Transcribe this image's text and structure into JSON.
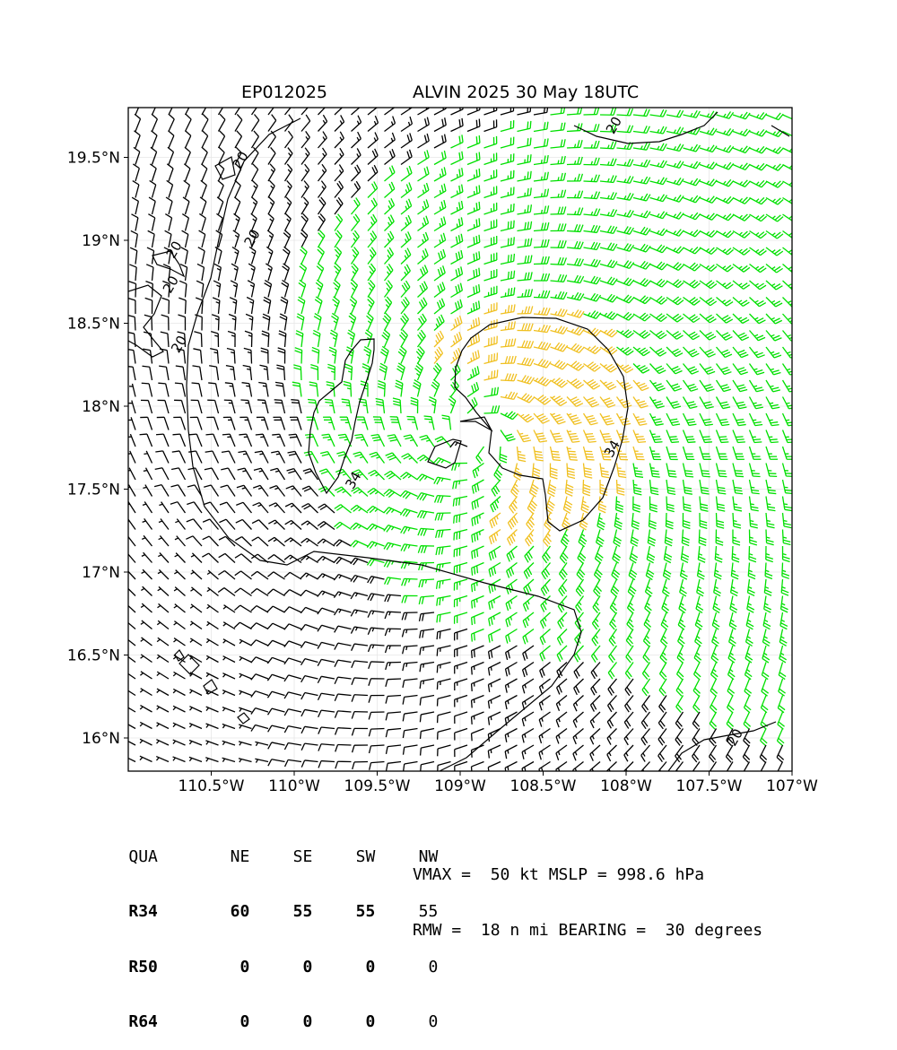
{
  "header": {
    "storm_id": "EP012025",
    "storm_title": "ALVIN 2025 30 May 18UTC"
  },
  "map": {
    "lat_range": [
      15.8,
      19.8
    ],
    "lon_range": [
      -111.0,
      -107.0
    ],
    "lat_ticks": [
      {
        "value": 16.0,
        "label": "16°N"
      },
      {
        "value": 16.5,
        "label": "16.5°N"
      },
      {
        "value": 17.0,
        "label": "17°N"
      },
      {
        "value": 17.5,
        "label": "17.5°N"
      },
      {
        "value": 18.0,
        "label": "18°N"
      },
      {
        "value": 18.5,
        "label": "18.5°N"
      },
      {
        "value": 19.0,
        "label": "19°N"
      },
      {
        "value": 19.5,
        "label": "19.5°N"
      }
    ],
    "lon_ticks": [
      {
        "value": -110.5,
        "label": "110.5°W"
      },
      {
        "value": -110.0,
        "label": "110°W"
      },
      {
        "value": -109.5,
        "label": "109.5°W"
      },
      {
        "value": -109.0,
        "label": "109°W"
      },
      {
        "value": -108.5,
        "label": "108.5°W"
      },
      {
        "value": -108.0,
        "label": "108°W"
      },
      {
        "value": -107.5,
        "label": "107.5°W"
      },
      {
        "value": -107.0,
        "label": "107°W"
      }
    ],
    "grid": true,
    "center": {
      "lat": 17.82,
      "lon": -108.9
    },
    "barb_colors": {
      "below_20": "#000000",
      "gale": "#00e000",
      "storm": "#f0c020"
    },
    "contour_labels": [
      {
        "text": "20",
        "lat": 19.68,
        "lon": -108.05
      },
      {
        "text": "20",
        "lat": 19.47,
        "lon": -110.3
      },
      {
        "text": "20",
        "lat": 19.0,
        "lon": -110.23
      },
      {
        "text": "20",
        "lat": 18.93,
        "lon": -110.7
      },
      {
        "text": "20",
        "lat": 18.72,
        "lon": -110.72
      },
      {
        "text": "20",
        "lat": 18.36,
        "lon": -110.67
      },
      {
        "text": "20",
        "lat": 15.99,
        "lon": -107.32
      },
      {
        "text": "34",
        "lat": 17.54,
        "lon": -109.62
      },
      {
        "text": "34",
        "lat": 17.73,
        "lon": -108.06
      }
    ]
  },
  "wind_radii": {
    "header": [
      "QUA",
      "NE",
      "SE",
      "SW",
      "NW"
    ],
    "rows": [
      {
        "label": "R34",
        "values": [
          "60",
          "55",
          "55",
          "55"
        ]
      },
      {
        "label": "R50",
        "values": [
          "0",
          "0",
          "0",
          "0"
        ]
      },
      {
        "label": "R64",
        "values": [
          "0",
          "0",
          "0",
          "0"
        ]
      }
    ]
  },
  "summary": {
    "line1": "VMAX =  50 kt MSLP = 998.6 hPa",
    "line2": "RMW =  18 n mi BEARING =  30 degrees"
  }
}
